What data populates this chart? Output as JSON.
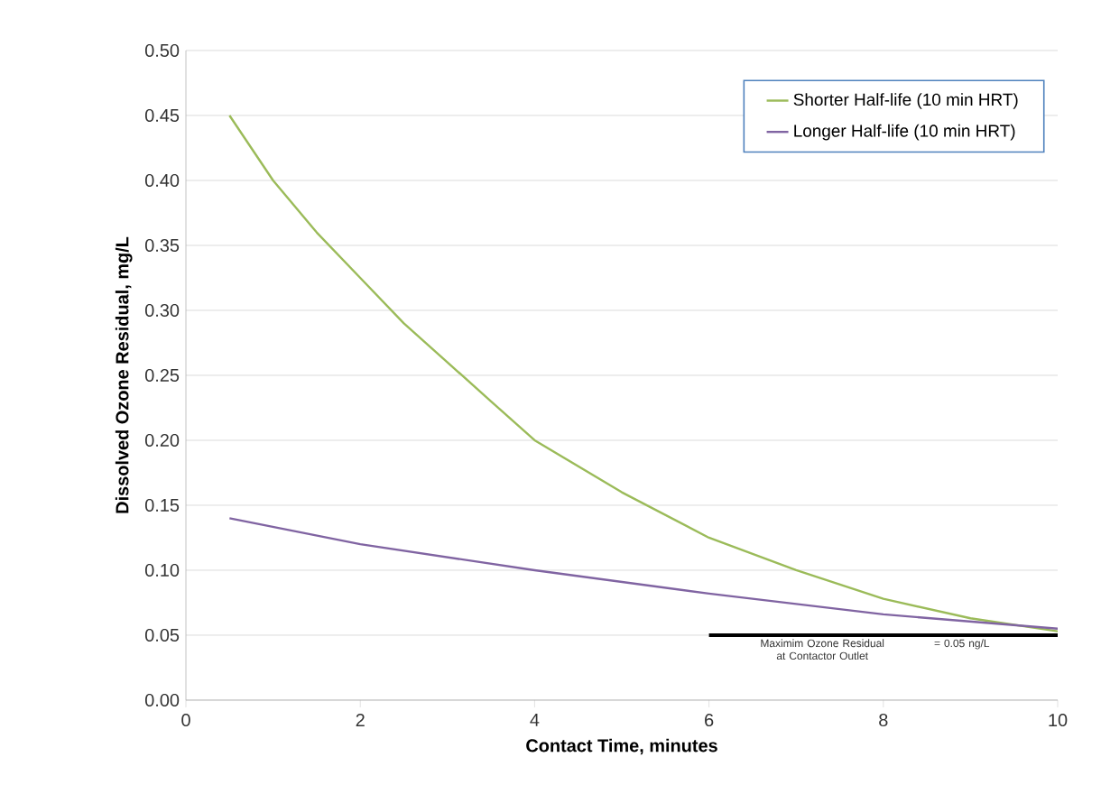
{
  "chart_data": {
    "type": "line",
    "xlabel": "Contact Time, minutes",
    "ylabel": "Dissolved Ozone Residual, mg/L",
    "xlim": [
      0,
      10
    ],
    "xticks": [
      0,
      2,
      4,
      6,
      8,
      10
    ],
    "ylim": [
      0,
      0.5
    ],
    "yticks": [
      {
        "value": 0,
        "label": "0.00"
      },
      {
        "value": 0.05,
        "label": "0.05"
      },
      {
        "value": 0.1,
        "label": "0.10"
      },
      {
        "value": 0.15,
        "label": "0.15"
      },
      {
        "value": 0.2,
        "label": "0.20"
      },
      {
        "value": 0.25,
        "label": "0.25"
      },
      {
        "value": 0.3,
        "label": "0.30"
      },
      {
        "value": 0.35,
        "label": "0.35"
      },
      {
        "value": 0.4,
        "label": "0.40"
      },
      {
        "value": 0.45,
        "label": "0.45"
      },
      {
        "value": 0.5,
        "label": "0.50"
      }
    ],
    "grid": "y",
    "legend": "top right",
    "marker": "none",
    "line_style": "solid",
    "series": [
      {
        "name": "Shorter Half-life (10 min HRT)",
        "color": "#9bbb59",
        "x": [
          0.5,
          1,
          1.5,
          2,
          2.5,
          3,
          3.5,
          4,
          5,
          6,
          7,
          8,
          9,
          10
        ],
        "values": [
          0.45,
          0.4,
          0.36,
          0.325,
          0.29,
          0.26,
          0.23,
          0.2,
          0.16,
          0.125,
          0.1,
          0.078,
          0.063,
          0.053
        ]
      },
      {
        "name": "Longer Half-life (10 min HRT)",
        "color": "#8064a2",
        "x": [
          0.5,
          2,
          4,
          6,
          8,
          10
        ],
        "values": [
          0.14,
          0.12,
          0.1,
          0.082,
          0.066,
          0.055
        ]
      },
      {
        "type": "line",
        "color": "#000000",
        "x": [
          6,
          10
        ],
        "values": [
          0.05,
          0.05
        ]
      }
    ],
    "annotations": [
      {
        "text": "Maximim Ozone Residual at Contactor Outlet",
        "x": 7.3,
        "y": 0.05
      },
      {
        "text": "= 0.05 ng/L",
        "x": 8.9,
        "y": 0.05
      }
    ]
  }
}
